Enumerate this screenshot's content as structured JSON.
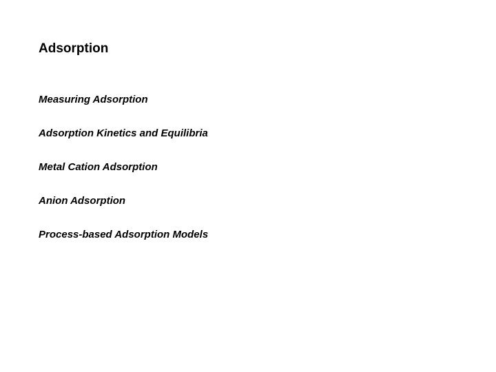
{
  "document": {
    "title": "Adsorption",
    "title_fontsize": 19,
    "title_fontweight": "bold",
    "title_color": "#000000",
    "subtopics": [
      {
        "label": "Measuring Adsorption"
      },
      {
        "label": "Adsorption Kinetics and Equilibria"
      },
      {
        "label": "Metal Cation Adsorption"
      },
      {
        "label": "Anion Adsorption"
      },
      {
        "label": "Process-based Adsorption Models"
      }
    ],
    "subtopic_fontsize": 15,
    "subtopic_fontweight": "bold",
    "subtopic_fontstyle": "italic",
    "subtopic_color": "#000000",
    "background_color": "#ffffff",
    "font_family": "Arial"
  }
}
